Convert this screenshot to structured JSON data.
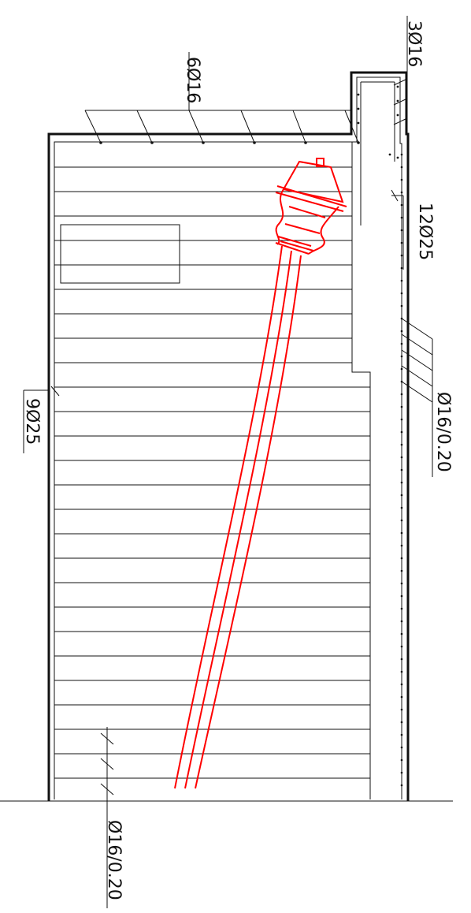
{
  "drawing": {
    "labels": {
      "top_bar": "6Ø16",
      "corner_bar": "3Ø16",
      "right_bar": "12Ø25",
      "left_bar": "9Ø25",
      "right_stirrup": "Ø16/0.20",
      "bottom_stirrup": "Ø16/0.20"
    },
    "colors": {
      "line": "#111111",
      "highlight": "#ff0000"
    }
  }
}
